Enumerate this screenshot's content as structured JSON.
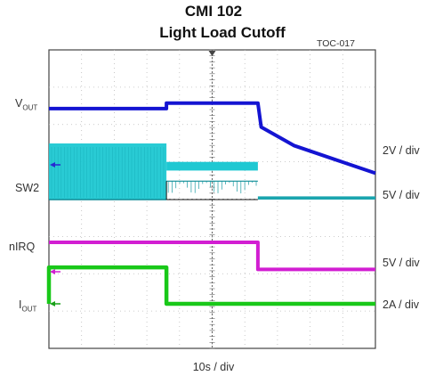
{
  "chart_data": {
    "type": "line",
    "title": "CMI 102",
    "subtitle": "Light Load Cutoff",
    "figure_id": "TOC-017",
    "xlabel": "10s / div",
    "grid": true,
    "x_divisions": 10,
    "y_divisions": 8,
    "x_unit_per_div": "10s",
    "series": [
      {
        "name": "VOUT",
        "label_main": "V",
        "label_sub": "OUT",
        "scale": "2V / div",
        "color": "#1414d2",
        "points": [
          [
            0,
            5.05
          ],
          [
            36,
            5.05
          ],
          [
            36,
            5.2
          ],
          [
            64,
            5.2
          ],
          [
            65,
            4.55
          ],
          [
            75,
            4.05
          ],
          [
            90,
            3.6
          ],
          [
            100,
            3.3
          ]
        ]
      },
      {
        "name": "SW2",
        "scale": "5V / div",
        "color": "#1ec8d2",
        "segments": [
          {
            "x": [
              0,
              36
            ],
            "low": 0,
            "high": 7.0,
            "style": "switching-dense"
          },
          {
            "x": [
              36,
              64
            ],
            "low": 2.3,
            "high": 4.7,
            "style": "switching-band"
          },
          {
            "x": [
              64,
              100
            ],
            "low": 0,
            "high": 0.4,
            "style": "flat"
          }
        ]
      },
      {
        "name": "nIRQ",
        "scale": "5V / div",
        "color": "#d21ed2",
        "points": [
          [
            0,
            5.0
          ],
          [
            64,
            5.0
          ],
          [
            64,
            0.4
          ],
          [
            100,
            0.4
          ]
        ]
      },
      {
        "name": "IOUT",
        "label_main": "I",
        "label_sub": "OUT",
        "scale": "2A / div",
        "color": "#19c819",
        "points": [
          [
            0,
            0.0
          ],
          [
            0,
            2.1
          ],
          [
            36,
            2.1
          ],
          [
            36,
            0.0
          ],
          [
            100,
            0.0
          ]
        ]
      }
    ]
  }
}
